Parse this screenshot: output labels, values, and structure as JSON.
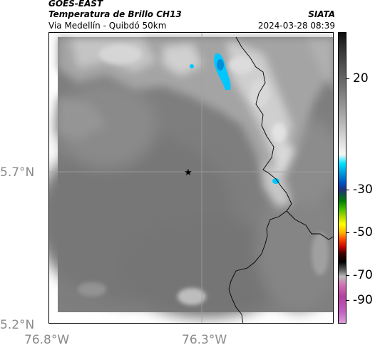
{
  "header": {
    "satellite": "GOES-EAST",
    "product": "Temperatura de Brillo CH13",
    "location": "Via Medellín - Quibdó 50km",
    "agency": "SIATA",
    "timestamp": "2024-03-28 08:39"
  },
  "axes": {
    "latitude_labels": [
      "5.7°N",
      "5.2°N"
    ],
    "longitude_labels": [
      "76.8°W",
      "76.3°W"
    ]
  },
  "colorbar": {
    "tick_labels": [
      "20",
      "-30",
      "-50",
      "-70",
      "-90"
    ]
  },
  "map": {
    "marker_icon": "star-icon",
    "colors": {
      "cold_cloud": "#00c8ff",
      "cold_cloud_core": "#0090d8",
      "border_line": "#000000",
      "grid_line": "#a0a0a0"
    }
  }
}
